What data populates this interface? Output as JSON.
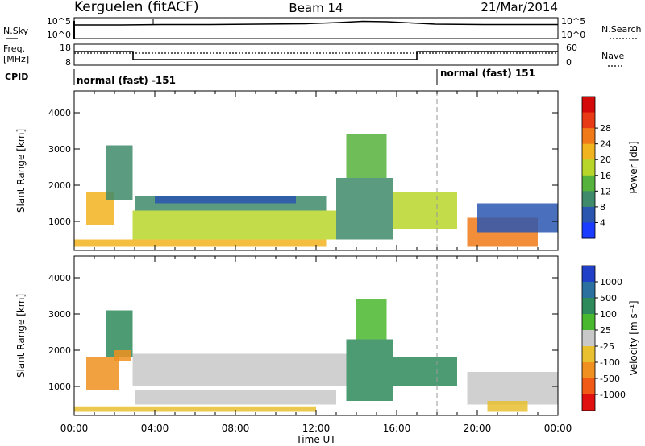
{
  "header": {
    "station": "Kerguelen (fitACF)",
    "beam": "Beam 14",
    "date": "21/Mar/2014"
  },
  "noise_panel": {
    "left_label": "N.Sky",
    "right_label": "N.Search",
    "left_ticks": [
      "10^5",
      "10^0"
    ],
    "right_ticks": [
      "10^5",
      "10^0"
    ]
  },
  "freq_panel": {
    "left_label_1": "Freq.",
    "left_label_2": "[MHz]",
    "right_label": "Nave",
    "left_ticks": [
      "18",
      "8"
    ],
    "right_ticks": [
      "60",
      "0"
    ]
  },
  "cpid": {
    "label": "CPID",
    "segments": [
      {
        "text": "normal (fast) -151",
        "start_hour": 0,
        "end_hour": 18
      },
      {
        "text": "normal (fast) 151",
        "start_hour": 18,
        "end_hour": 24
      }
    ]
  },
  "time_axis": {
    "label": "Time UT",
    "ticks": [
      "00:00",
      "04:00",
      "08:00",
      "12:00",
      "16:00",
      "20:00",
      "00:00"
    ]
  },
  "chart_data": [
    {
      "type": "heatmap",
      "name": "power-panel",
      "xlabel": "Time UT",
      "ylabel": "Slant Range [km]",
      "xlim": [
        0,
        24
      ],
      "ylim": [
        200,
        4600
      ],
      "yticks": [
        "1000",
        "2000",
        "3000",
        "4000"
      ],
      "colorbar": {
        "label": "Power [dB]",
        "ticks": [
          "4",
          "8",
          "12",
          "16",
          "20",
          "24",
          "28"
        ],
        "colors": [
          "#1a3cff",
          "#2a56b0",
          "#3e8a6a",
          "#55b23c",
          "#b8d62a",
          "#f2b41e",
          "#f07a18",
          "#e83a14",
          "#d40a0a"
        ]
      },
      "regions": [
        {
          "t0": 0.6,
          "t1": 2.0,
          "r0": 900,
          "r1": 1800,
          "value": 22
        },
        {
          "t0": 1.6,
          "t1": 2.9,
          "r0": 1600,
          "r1": 3100,
          "value": 10
        },
        {
          "t0": 2.9,
          "t1": 13.0,
          "r0": 500,
          "r1": 1300,
          "value": 20
        },
        {
          "t0": 3.0,
          "t1": 12.5,
          "r0": 1300,
          "r1": 1700,
          "value": 12
        },
        {
          "t0": 4.0,
          "t1": 11.0,
          "r0": 1500,
          "r1": 1700,
          "value": 6
        },
        {
          "t0": 0.0,
          "t1": 12.5,
          "r0": 300,
          "r1": 500,
          "value": 22
        },
        {
          "t0": 13.0,
          "t1": 15.8,
          "r0": 500,
          "r1": 2200,
          "value": 10
        },
        {
          "t0": 13.5,
          "t1": 15.5,
          "r0": 2200,
          "r1": 3400,
          "value": 13
        },
        {
          "t0": 15.8,
          "t1": 19.0,
          "r0": 800,
          "r1": 1800,
          "value": 18
        },
        {
          "t0": 19.5,
          "t1": 23.0,
          "r0": 300,
          "r1": 1100,
          "value": 25
        },
        {
          "t0": 20.0,
          "t1": 24.0,
          "r0": 700,
          "r1": 1500,
          "value": 6
        }
      ]
    },
    {
      "type": "heatmap",
      "name": "velocity-panel",
      "xlabel": "Time UT",
      "ylabel": "Slant Range [km]",
      "xlim": [
        0,
        24
      ],
      "ylim": [
        200,
        4600
      ],
      "yticks": [
        "1000",
        "2000",
        "3000",
        "4000"
      ],
      "colorbar": {
        "label": "Velocity [m s⁻¹]",
        "ticks": [
          "1000",
          "500",
          "100",
          "25",
          "-25",
          "-100",
          "-500",
          "-1000"
        ],
        "colors": [
          "#2040c8",
          "#2c70a0",
          "#2e8a5a",
          "#4ab82e",
          "#c8c8c8",
          "#e8c030",
          "#f09020",
          "#f05a16",
          "#e01010"
        ]
      },
      "regions": [
        {
          "t0": 0.6,
          "t1": 2.2,
          "r0": 900,
          "r1": 1800,
          "value": -500
        },
        {
          "t0": 1.6,
          "t1": 2.9,
          "r0": 1800,
          "r1": 3100,
          "value": 200
        },
        {
          "t0": 2.0,
          "t1": 2.8,
          "r0": 1700,
          "r1": 2000,
          "value": -300
        },
        {
          "t0": 2.9,
          "t1": 13.5,
          "r0": 1000,
          "r1": 1900,
          "value": 0
        },
        {
          "t0": 3.0,
          "t1": 13.0,
          "r0": 500,
          "r1": 900,
          "value": 0
        },
        {
          "t0": 0.0,
          "t1": 12.0,
          "r0": 300,
          "r1": 450,
          "value": -60
        },
        {
          "t0": 13.5,
          "t1": 15.8,
          "r0": 600,
          "r1": 2300,
          "value": 300
        },
        {
          "t0": 14.0,
          "t1": 15.5,
          "r0": 2300,
          "r1": 3400,
          "value": 60
        },
        {
          "t0": 15.8,
          "t1": 19.0,
          "r0": 1000,
          "r1": 1800,
          "value": 300
        },
        {
          "t0": 19.5,
          "t1": 24.0,
          "r0": 500,
          "r1": 1400,
          "value": 0
        },
        {
          "t0": 20.5,
          "t1": 22.5,
          "r0": 300,
          "r1": 600,
          "value": -60
        }
      ]
    }
  ]
}
